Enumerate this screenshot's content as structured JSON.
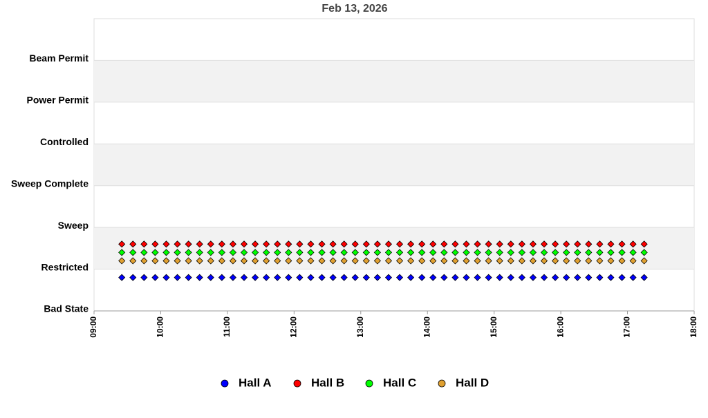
{
  "chart_data": {
    "type": "scatter",
    "title": "Feb 13, 2026",
    "x": [
      "09:25",
      "09:35",
      "09:45",
      "09:55",
      "10:05",
      "10:15",
      "10:25",
      "10:35",
      "10:45",
      "10:55",
      "11:05",
      "11:15",
      "11:25",
      "11:35",
      "11:45",
      "11:55",
      "12:05",
      "12:15",
      "12:25",
      "12:35",
      "12:45",
      "12:55",
      "13:05",
      "13:15",
      "13:25",
      "13:35",
      "13:45",
      "13:55",
      "14:05",
      "14:15",
      "14:25",
      "14:35",
      "14:45",
      "14:55",
      "15:05",
      "15:15",
      "15:25",
      "15:35",
      "15:45",
      "15:55",
      "16:05",
      "16:15",
      "16:25",
      "16:35",
      "16:45",
      "16:55",
      "17:05",
      "17:15"
    ],
    "series": [
      {
        "name": "Hall A",
        "color": "#0000ff",
        "values": [
          0.8,
          0.8,
          0.8,
          0.8,
          0.8,
          0.8,
          0.8,
          0.8,
          0.8,
          0.8,
          0.8,
          0.8,
          0.8,
          0.8,
          0.8,
          0.8,
          0.8,
          0.8,
          0.8,
          0.8,
          0.8,
          0.8,
          0.8,
          0.8,
          0.8,
          0.8,
          0.8,
          0.8,
          0.8,
          0.8,
          0.8,
          0.8,
          0.8,
          0.8,
          0.8,
          0.8,
          0.8,
          0.8,
          0.8,
          0.8,
          0.8,
          0.8,
          0.8,
          0.8,
          0.8,
          0.8,
          0.8,
          0.8
        ]
      },
      {
        "name": "Hall B",
        "color": "#ff0000",
        "values": [
          1.6,
          1.6,
          1.6,
          1.6,
          1.6,
          1.6,
          1.6,
          1.6,
          1.6,
          1.6,
          1.6,
          1.6,
          1.6,
          1.6,
          1.6,
          1.6,
          1.6,
          1.6,
          1.6,
          1.6,
          1.6,
          1.6,
          1.6,
          1.6,
          1.6,
          1.6,
          1.6,
          1.6,
          1.6,
          1.6,
          1.6,
          1.6,
          1.6,
          1.6,
          1.6,
          1.6,
          1.6,
          1.6,
          1.6,
          1.6,
          1.6,
          1.6,
          1.6,
          1.6,
          1.6,
          1.6,
          1.6,
          1.6
        ]
      },
      {
        "name": "Hall C",
        "color": "#00ff00",
        "values": [
          1.4,
          1.4,
          1.4,
          1.4,
          1.4,
          1.4,
          1.4,
          1.4,
          1.4,
          1.4,
          1.4,
          1.4,
          1.4,
          1.4,
          1.4,
          1.4,
          1.4,
          1.4,
          1.4,
          1.4,
          1.4,
          1.4,
          1.4,
          1.4,
          1.4,
          1.4,
          1.4,
          1.4,
          1.4,
          1.4,
          1.4,
          1.4,
          1.4,
          1.4,
          1.4,
          1.4,
          1.4,
          1.4,
          1.4,
          1.4,
          1.4,
          1.4,
          1.4,
          1.4,
          1.4,
          1.4,
          1.4,
          1.4
        ]
      },
      {
        "name": "Hall D",
        "color": "#e0a030",
        "values": [
          1.2,
          1.2,
          1.2,
          1.2,
          1.2,
          1.2,
          1.2,
          1.2,
          1.2,
          1.2,
          1.2,
          1.2,
          1.2,
          1.2,
          1.2,
          1.2,
          1.2,
          1.2,
          1.2,
          1.2,
          1.2,
          1.2,
          1.2,
          1.2,
          1.2,
          1.2,
          1.2,
          1.2,
          1.2,
          1.2,
          1.2,
          1.2,
          1.2,
          1.2,
          1.2,
          1.2,
          1.2,
          1.2,
          1.2,
          1.2,
          1.2,
          1.2,
          1.2,
          1.2,
          1.2,
          1.2,
          1.2,
          1.2
        ]
      }
    ],
    "xlim": [
      "09:00",
      "18:00"
    ],
    "xticks": [
      "09:00",
      "10:00",
      "11:00",
      "12:00",
      "13:00",
      "14:00",
      "15:00",
      "16:00",
      "17:00",
      "18:00"
    ],
    "ylim": [
      0,
      7
    ],
    "yticks": [
      {
        "value": 0,
        "label": "Bad State"
      },
      {
        "value": 1,
        "label": "Restricted"
      },
      {
        "value": 2,
        "label": "Sweep"
      },
      {
        "value": 3,
        "label": "Sweep Complete"
      },
      {
        "value": 4,
        "label": "Controlled"
      },
      {
        "value": 5,
        "label": "Power Permit"
      },
      {
        "value": 6,
        "label": "Beam Permit"
      }
    ],
    "legend": "bottom"
  }
}
